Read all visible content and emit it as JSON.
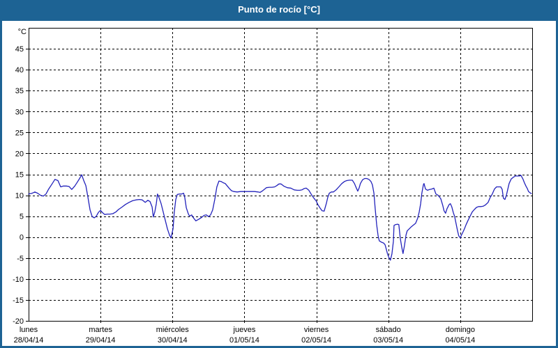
{
  "window": {
    "title": "Punto de rocío [°C]",
    "titlebar_bg": "#1d6394",
    "border_color": "#1d6394",
    "background": "#ffffff"
  },
  "chart_data": {
    "type": "line",
    "title": "Punto de rocío [°C]",
    "grid": {
      "dashed": true,
      "color": "#000000"
    },
    "y_axis": {
      "unit_label": "°C",
      "min": -20,
      "max": 50,
      "tick_step": 5,
      "tick_labels": [
        "45",
        "40",
        "35",
        "30",
        "25",
        "20",
        "15",
        "10",
        "5",
        "0",
        "-5",
        "-10",
        "-15",
        "-20"
      ]
    },
    "x_axis": {
      "hours_total": 168,
      "days": [
        {
          "name": "lunes",
          "date": "28/04/14"
        },
        {
          "name": "martes",
          "date": "29/04/14"
        },
        {
          "name": "miércoles",
          "date": "30/04/14"
        },
        {
          "name": "jueves",
          "date": "01/05/14"
        },
        {
          "name": "viernes",
          "date": "02/05/14"
        },
        {
          "name": "sábado",
          "date": "03/05/14"
        },
        {
          "name": "domingo",
          "date": "04/05/14"
        }
      ]
    },
    "series": [
      {
        "name": "Punto de rocío",
        "color": "#2222bb",
        "points_hours_celsius": [
          [
            0,
            10.3
          ],
          [
            1.2,
            10.5
          ],
          [
            2.1,
            10.8
          ],
          [
            3,
            10.5
          ],
          [
            4,
            10
          ],
          [
            4.9,
            9.8
          ],
          [
            5.8,
            10.3
          ],
          [
            6.7,
            11.5
          ],
          [
            7.9,
            12.8
          ],
          [
            8.8,
            13.8
          ],
          [
            9.8,
            13.5
          ],
          [
            10.7,
            12
          ],
          [
            11.6,
            12.2
          ],
          [
            12.6,
            12.2
          ],
          [
            13.5,
            12.1
          ],
          [
            14.4,
            11.4
          ],
          [
            15.4,
            12.2
          ],
          [
            16.3,
            13.2
          ],
          [
            17,
            14
          ],
          [
            17.7,
            14.9
          ],
          [
            18.4,
            13.5
          ],
          [
            19.1,
            12.3
          ],
          [
            19.8,
            9.5
          ],
          [
            20.5,
            6.5
          ],
          [
            21.2,
            4.9
          ],
          [
            21.9,
            4.6
          ],
          [
            22.6,
            5
          ],
          [
            23.3,
            5.9
          ],
          [
            24,
            6.4
          ],
          [
            24.7,
            5.8
          ],
          [
            25.4,
            5.4
          ],
          [
            26.3,
            5.5
          ],
          [
            27.2,
            5.5
          ],
          [
            28.1,
            5.6
          ],
          [
            29.1,
            6
          ],
          [
            30,
            6.6
          ],
          [
            31.2,
            7.2
          ],
          [
            32.3,
            7.8
          ],
          [
            33.5,
            8.3
          ],
          [
            34.7,
            8.7
          ],
          [
            35.8,
            8.9
          ],
          [
            37,
            9
          ],
          [
            37.9,
            8.9
          ],
          [
            38.9,
            8.3
          ],
          [
            39.8,
            8.8
          ],
          [
            40.5,
            8.5
          ],
          [
            41.2,
            7.2
          ],
          [
            41.6,
            4.8
          ],
          [
            42.1,
            6
          ],
          [
            42.6,
            8
          ],
          [
            43,
            10.3
          ],
          [
            43.5,
            9.5
          ],
          [
            44.2,
            8
          ],
          [
            44.9,
            6
          ],
          [
            45.6,
            4
          ],
          [
            46.3,
            2
          ],
          [
            47,
            0.5
          ],
          [
            47.5,
            -0.2
          ],
          [
            48.2,
            2
          ],
          [
            48.6,
            6
          ],
          [
            49.1,
            9
          ],
          [
            49.6,
            10.2
          ],
          [
            50.3,
            10.3
          ],
          [
            51,
            10.3
          ],
          [
            51.7,
            10.5
          ],
          [
            52.1,
            9.5
          ],
          [
            52.6,
            7
          ],
          [
            53.3,
            5.5
          ],
          [
            53.7,
            5
          ],
          [
            54.4,
            5.3
          ],
          [
            55.1,
            4.5
          ],
          [
            55.8,
            3.9
          ],
          [
            56.8,
            4.3
          ],
          [
            57.7,
            4.7
          ],
          [
            58.6,
            5.2
          ],
          [
            59.3,
            5.3
          ],
          [
            60,
            4.9
          ],
          [
            60.7,
            5.3
          ],
          [
            61.4,
            6.5
          ],
          [
            62.1,
            9
          ],
          [
            62.8,
            12
          ],
          [
            63.5,
            13.4
          ],
          [
            64.2,
            13.3
          ],
          [
            64.9,
            13
          ],
          [
            65.6,
            12.8
          ],
          [
            66.3,
            12.2
          ],
          [
            67,
            11.6
          ],
          [
            67.7,
            11.1
          ],
          [
            68.4,
            10.9
          ],
          [
            69.6,
            10.8
          ],
          [
            70.7,
            10.9
          ],
          [
            71.9,
            10.9
          ],
          [
            73.1,
            10.9
          ],
          [
            74.2,
            10.9
          ],
          [
            75.4,
            10.9
          ],
          [
            76.5,
            10.8
          ],
          [
            77.2,
            10.7
          ],
          [
            77.9,
            11
          ],
          [
            78.6,
            11.4
          ],
          [
            79.3,
            11.8
          ],
          [
            80.3,
            11.9
          ],
          [
            81.2,
            11.9
          ],
          [
            82.1,
            12
          ],
          [
            82.8,
            12.3
          ],
          [
            83.5,
            12.7
          ],
          [
            84.2,
            12.7
          ],
          [
            85.1,
            12.2
          ],
          [
            86.3,
            11.8
          ],
          [
            87.5,
            11.7
          ],
          [
            88.6,
            11.3
          ],
          [
            89.6,
            11.2
          ],
          [
            90.5,
            11.2
          ],
          [
            91.2,
            11.3
          ],
          [
            91.9,
            11.6
          ],
          [
            92.6,
            11.7
          ],
          [
            93.5,
            11.2
          ],
          [
            94.5,
            10
          ],
          [
            95.2,
            9.3
          ],
          [
            95.9,
            8.7
          ],
          [
            96.5,
            7.8
          ],
          [
            97.2,
            7
          ],
          [
            97.9,
            6.3
          ],
          [
            98.6,
            6.2
          ],
          [
            99.3,
            8
          ],
          [
            99.8,
            9.5
          ],
          [
            100.3,
            10.5
          ],
          [
            101,
            10.8
          ],
          [
            101.7,
            10.8
          ],
          [
            102.6,
            11.3
          ],
          [
            103.5,
            12
          ],
          [
            104.5,
            12.8
          ],
          [
            105.4,
            13.3
          ],
          [
            106.1,
            13.5
          ],
          [
            107,
            13.6
          ],
          [
            108,
            13.6
          ],
          [
            108.7,
            12.8
          ],
          [
            109.3,
            11.8
          ],
          [
            109.8,
            11
          ],
          [
            110.3,
            11.8
          ],
          [
            110.7,
            12.8
          ],
          [
            111.4,
            13.7
          ],
          [
            112.1,
            14
          ],
          [
            112.8,
            14
          ],
          [
            113.5,
            13.8
          ],
          [
            114.2,
            13.3
          ],
          [
            114.7,
            12.5
          ],
          [
            115.2,
            10.5
          ],
          [
            115.6,
            7
          ],
          [
            116.1,
            3
          ],
          [
            116.6,
            0.3
          ],
          [
            117,
            -0.9
          ],
          [
            117.7,
            -1.2
          ],
          [
            118.4,
            -1.4
          ],
          [
            118.9,
            -1.8
          ],
          [
            119.3,
            -2.8
          ],
          [
            119.8,
            -4.2
          ],
          [
            120.3,
            -5
          ],
          [
            120.7,
            -5.5
          ],
          [
            121.2,
            -4
          ],
          [
            121.7,
            -1
          ],
          [
            121.9,
            2.8
          ],
          [
            122.4,
            3
          ],
          [
            123.1,
            3.1
          ],
          [
            123.5,
            3
          ],
          [
            124,
            -0.3
          ],
          [
            124.5,
            -2.5
          ],
          [
            124.9,
            -3.9
          ],
          [
            125.4,
            -2
          ],
          [
            125.9,
            0.5
          ],
          [
            126.3,
            1.5
          ],
          [
            127,
            2
          ],
          [
            127.7,
            2.5
          ],
          [
            128.4,
            2.9
          ],
          [
            129.1,
            3.3
          ],
          [
            129.8,
            4.5
          ],
          [
            130.3,
            6
          ],
          [
            130.8,
            8
          ],
          [
            131.2,
            10.5
          ],
          [
            131.7,
            12.5
          ],
          [
            131.9,
            12.8
          ],
          [
            132.4,
            11.5
          ],
          [
            133.1,
            11.2
          ],
          [
            133.8,
            11.4
          ],
          [
            134.5,
            11.5
          ],
          [
            135.2,
            11.7
          ],
          [
            135.9,
            10.3
          ],
          [
            136.6,
            10
          ],
          [
            137.5,
            9.2
          ],
          [
            138.2,
            7.5
          ],
          [
            138.6,
            6.3
          ],
          [
            139.1,
            5.7
          ],
          [
            139.6,
            6.8
          ],
          [
            140.3,
            7.8
          ],
          [
            140.7,
            8
          ],
          [
            141.2,
            7.2
          ],
          [
            141.7,
            5.8
          ],
          [
            142.1,
            5
          ],
          [
            142.6,
            3.3
          ],
          [
            143.1,
            1.5
          ],
          [
            143.5,
            0.3
          ],
          [
            144,
            -0.2
          ],
          [
            144.4,
            0.5
          ],
          [
            144.9,
            1.2
          ],
          [
            145.4,
            2
          ],
          [
            145.9,
            2.9
          ],
          [
            146.6,
            4
          ],
          [
            147.3,
            5
          ],
          [
            148,
            6
          ],
          [
            148.7,
            6.6
          ],
          [
            149.4,
            7.1
          ],
          [
            150.1,
            7.3
          ],
          [
            151,
            7.3
          ],
          [
            151.7,
            7.4
          ],
          [
            152.4,
            7.7
          ],
          [
            153.3,
            8.3
          ],
          [
            154,
            9.5
          ],
          [
            154.7,
            10.3
          ],
          [
            155.4,
            11.5
          ],
          [
            156.1,
            12
          ],
          [
            156.8,
            12
          ],
          [
            157.5,
            12
          ],
          [
            158,
            11.4
          ],
          [
            158.4,
            9.3
          ],
          [
            158.9,
            9
          ],
          [
            159.4,
            10
          ],
          [
            159.8,
            11.3
          ],
          [
            160.3,
            12.8
          ],
          [
            161,
            13.9
          ],
          [
            161.7,
            14.3
          ],
          [
            162.4,
            14.6
          ],
          [
            163.1,
            14.6
          ],
          [
            163.8,
            14.6
          ],
          [
            164.2,
            14.8
          ],
          [
            164.9,
            13.9
          ],
          [
            165.4,
            13
          ],
          [
            165.9,
            12.2
          ],
          [
            166.3,
            11.7
          ],
          [
            166.8,
            10.9
          ],
          [
            167.3,
            10.6
          ],
          [
            167.7,
            10.4
          ]
        ]
      }
    ]
  }
}
